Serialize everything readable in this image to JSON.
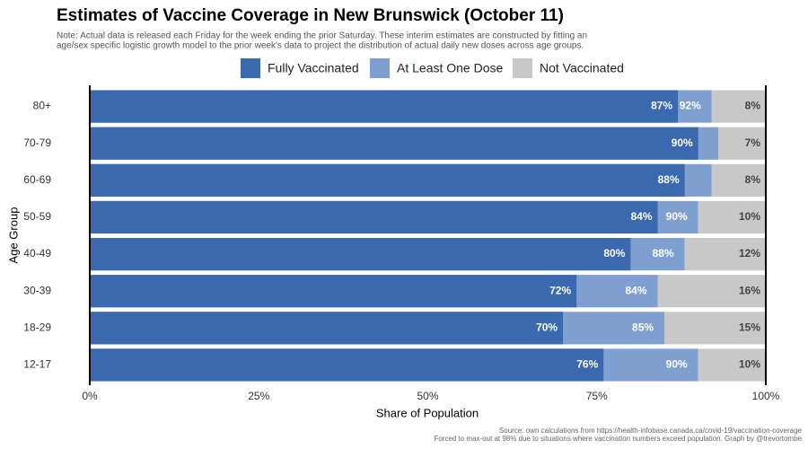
{
  "chart_data": {
    "type": "bar",
    "title": "Estimates of Vaccine Coverage in New Brunswick (October 11)",
    "note": [
      "Note: Actual data is released each Friday for the week ending the prior Saturday. These interim estimates are constructed by fitting an",
      "age/sex specific logistic growth model to the prior week's data to project the distribution of actual daily new doses across age groups."
    ],
    "caption": [
      "Source: own calculations from https://health-infobase.canada.ca/covid-19/vaccination-coverage",
      "Forced to max-out at 98% due to situations where vaccination numbers exceed population. Graph by @trevortombe"
    ],
    "x_label": "Share of Population",
    "y_label": "Age Group",
    "categories": [
      "80+",
      "70-79",
      "60-69",
      "50-59",
      "40-49",
      "30-39",
      "18-29",
      "12-17"
    ],
    "series": [
      {
        "name": "Fully Vaccinated",
        "color": "#3a69b0",
        "values": [
          87,
          90,
          88,
          84,
          80,
          72,
          70,
          76
        ],
        "value_labels": [
          "87%",
          "90%",
          "88%",
          "84%",
          "80%",
          "72%",
          "70%",
          "76%"
        ]
      },
      {
        "name": "At Least One Dose",
        "color": "#7f9fd1",
        "values": [
          92,
          93,
          92,
          90,
          88,
          84,
          85,
          90
        ],
        "value_labels": [
          "92%",
          null,
          null,
          "90%",
          "88%",
          "84%",
          "85%",
          "90%"
        ]
      },
      {
        "name": "Not Vaccinated",
        "color": "#c8c8c8",
        "values": [
          8,
          7,
          8,
          10,
          12,
          16,
          15,
          10
        ],
        "value_labels": [
          "8%",
          "7%",
          "8%",
          "10%",
          "12%",
          "16%",
          "15%",
          "10%"
        ]
      }
    ],
    "xlim": [
      0,
      100
    ],
    "xticks": [
      {
        "value": 0,
        "label": "0%"
      },
      {
        "value": 25,
        "label": "25%"
      },
      {
        "value": 50,
        "label": "50%"
      },
      {
        "value": 75,
        "label": "75%"
      },
      {
        "value": 100,
        "label": "100%"
      }
    ],
    "legend": "top"
  }
}
